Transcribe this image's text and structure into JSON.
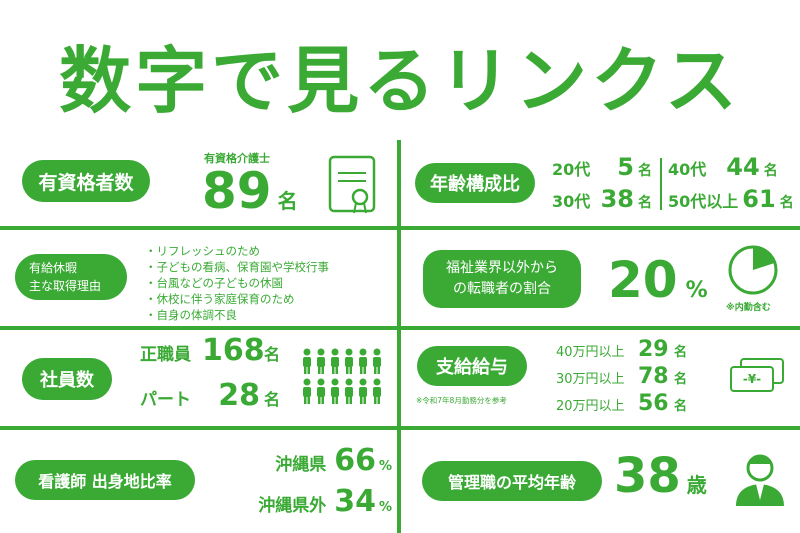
{
  "title": "数字で見るリンクス",
  "colors": {
    "accent": "#3aaa35"
  },
  "qualified": {
    "label": "有資格者数",
    "sub": "有資格介護士",
    "value": "89",
    "unit": "名",
    "icon": "certificate-icon"
  },
  "age": {
    "label": "年齢構成比",
    "rows": [
      {
        "age": "20代",
        "value": "5",
        "unit": "名"
      },
      {
        "age": "30代",
        "value": "38",
        "unit": "名"
      },
      {
        "age": "40代",
        "value": "44",
        "unit": "名"
      },
      {
        "age": "50代以上",
        "value": "61",
        "unit": "名"
      }
    ]
  },
  "leave": {
    "label_line1": "有給休暇",
    "label_line2": "主な取得理由",
    "reasons": [
      "・リフレッシュのため",
      "・子どもの看病、保育園や学校行事",
      "・台風などの子どもの休園",
      "・休校に伴う家庭保育のため",
      "・自身の体調不良"
    ]
  },
  "career": {
    "label_line1": "福祉業界以外から",
    "label_line2": "の転職者の割合",
    "value": "20",
    "unit": "%",
    "fraction": 0.2,
    "note": "※内勤含む",
    "icon": "pie-icon"
  },
  "staff": {
    "label": "社員数",
    "rows": [
      {
        "type": "正職員",
        "value": "168",
        "unit": "名"
      },
      {
        "type": "パート",
        "value": "28",
        "unit": "名"
      }
    ],
    "icon": "people-icon"
  },
  "salary": {
    "label": "支給給与",
    "note": "※令和7年8月勤務分を参考",
    "rows": [
      {
        "range": "40万円以上",
        "value": "29",
        "unit": "名"
      },
      {
        "range": "30万円以上",
        "value": "78",
        "unit": "名"
      },
      {
        "range": "20万円以上",
        "value": "56",
        "unit": "名"
      }
    ],
    "icon": "yen-bill-icon",
    "icon_text": "-¥-"
  },
  "origin": {
    "label": "看護師 出身地比率",
    "rows": [
      {
        "place": "沖縄県",
        "value": "66",
        "unit": "%"
      },
      {
        "place": "沖縄県外",
        "value": "34",
        "unit": "%"
      }
    ]
  },
  "manager": {
    "label": "管理職の平均年齢",
    "value": "38",
    "unit": "歳",
    "icon": "businessman-icon"
  }
}
